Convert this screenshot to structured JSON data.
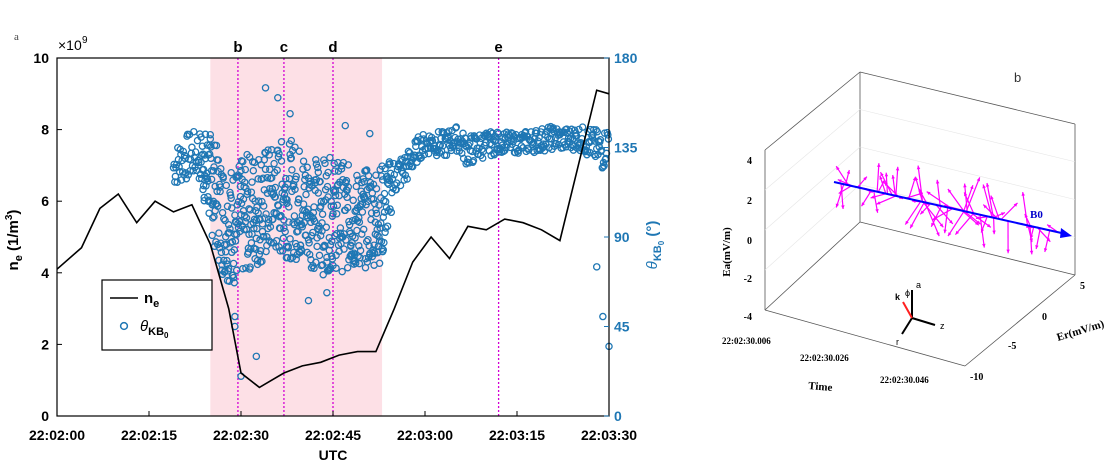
{
  "panel_a_label": "a",
  "panel_b_label": "b",
  "chart_data": [
    {
      "panel": "a",
      "type": "line",
      "xlabel": "UTC",
      "ylabel_left": "n_e (1/m^3)",
      "ylabel_right": "θ_KB0 (°)",
      "exponent_label": "×10",
      "exponent_power": "9",
      "xlim": [
        "22:02:00",
        "22:03:30"
      ],
      "ylim_left": [
        0,
        10
      ],
      "ylim_right": [
        0,
        180
      ],
      "x_ticks": [
        "22:02:00",
        "22:02:15",
        "22:02:30",
        "22:02:45",
        "22:03:00",
        "22:03:15",
        "22:03:30"
      ],
      "y_ticks_left": [
        "0",
        "2",
        "4",
        "6",
        "8",
        "10"
      ],
      "y_ticks_right": [
        "0",
        "45",
        "90",
        "135",
        "180"
      ],
      "colors": {
        "ne": "#000000",
        "theta": "#1f77b4",
        "shade": "#fde0e6",
        "marker_lines": "#d400d4"
      },
      "shaded_region": [
        "22:02:25",
        "22:02:53"
      ],
      "marker_lines": [
        {
          "label": "b",
          "x": "22:02:29.5"
        },
        {
          "label": "c",
          "x": "22:02:37"
        },
        {
          "label": "d",
          "x": "22:02:45"
        },
        {
          "label": "e",
          "x": "22:03:12"
        }
      ],
      "legend": {
        "placement": "bottom-left",
        "entries": [
          "n_e",
          "θ_KB0"
        ]
      },
      "series": [
        {
          "name": "n_e",
          "axis": "left",
          "x": [
            "22:02:00",
            "22:02:04",
            "22:02:07",
            "22:02:10",
            "22:02:13",
            "22:02:16",
            "22:02:19",
            "22:02:22",
            "22:02:25",
            "22:02:28",
            "22:02:30",
            "22:02:33",
            "22:02:37",
            "22:02:40",
            "22:02:43",
            "22:02:46",
            "22:02:49",
            "22:02:52",
            "22:02:55",
            "22:02:58",
            "22:03:01",
            "22:03:04",
            "22:03:07",
            "22:03:10",
            "22:03:13",
            "22:03:16",
            "22:03:19",
            "22:03:22",
            "22:03:25",
            "22:03:28",
            "22:03:30"
          ],
          "y": [
            4.1,
            4.7,
            5.8,
            6.2,
            5.4,
            6.0,
            5.7,
            5.9,
            4.8,
            3.0,
            1.2,
            0.8,
            1.2,
            1.4,
            1.5,
            1.7,
            1.8,
            1.8,
            3.0,
            4.3,
            5.0,
            4.4,
            5.3,
            5.2,
            5.5,
            5.4,
            5.2,
            4.9,
            7.0,
            9.1,
            9.0
          ]
        },
        {
          "name": "θ_KB0",
          "axis": "right",
          "envelope": {
            "x": [
              "22:02:19",
              "22:02:21",
              "22:02:23",
              "22:02:25",
              "22:02:27",
              "22:02:29",
              "22:02:31",
              "22:02:33",
              "22:02:35",
              "22:02:37",
              "22:02:39",
              "22:02:41",
              "22:02:43",
              "22:02:45",
              "22:02:47",
              "22:02:49",
              "22:02:51",
              "22:02:53",
              "22:02:55",
              "22:02:57",
              "22:02:59",
              "22:03:01",
              "22:03:03",
              "22:03:05",
              "22:03:07",
              "22:03:09",
              "22:03:11",
              "22:03:13",
              "22:03:15",
              "22:03:17",
              "22:03:19",
              "22:03:21",
              "22:03:23",
              "22:03:25",
              "22:03:27",
              "22:03:29",
              "22:03:30"
            ],
            "center": [
              125,
              130,
              132,
              118,
              100,
              95,
              102,
              105,
              108,
              110,
              108,
              104,
              100,
              102,
              100,
              98,
              100,
              102,
              120,
              125,
              135,
              138,
              136,
              140,
              133,
              136,
              137,
              138,
              137,
              138,
              139,
              140,
              139,
              140,
              137,
              133,
              140
            ],
            "spread": [
              10,
              12,
              12,
              25,
              30,
              30,
              30,
              30,
              28,
              30,
              30,
              28,
              30,
              28,
              28,
              25,
              25,
              25,
              10,
              8,
              6,
              6,
              7,
              6,
              8,
              7,
              6,
              5,
              5,
              6,
              6,
              6,
              6,
              6,
              8,
              10,
              8
            ]
          },
          "extra_points": [
            {
              "x": "22:02:30",
              "y": 20
            },
            {
              "x": "22:02:29",
              "y": 45
            },
            {
              "x": "22:02:29",
              "y": 50
            },
            {
              "x": "22:02:32.5",
              "y": 30
            },
            {
              "x": "22:02:34",
              "y": 165
            },
            {
              "x": "22:02:36",
              "y": 160
            },
            {
              "x": "22:02:38",
              "y": 152
            },
            {
              "x": "22:02:47",
              "y": 146
            },
            {
              "x": "22:02:51",
              "y": 142
            },
            {
              "x": "22:03:29",
              "y": 50
            },
            {
              "x": "22:03:30",
              "y": 35
            },
            {
              "x": "22:03:28",
              "y": 75
            },
            {
              "x": "22:02:44",
              "y": 62
            },
            {
              "x": "22:02:41",
              "y": 58
            }
          ]
        }
      ]
    },
    {
      "panel": "b",
      "type": "scatter",
      "zlabel": "Ea(mV/m)",
      "ylabel": "Er(mV/m)",
      "xlabel": "Time",
      "z_ticks": [
        "4",
        "2",
        "0",
        "-2",
        "-4"
      ],
      "y_ticks": [
        "5",
        "0",
        "-5",
        "-10"
      ],
      "x_ticks": [
        "22:02:30.006",
        "22:02:30.026",
        "22:02:30.046"
      ],
      "b_field_label": "B0",
      "axis_glyph_labels": [
        "a",
        "k",
        "ϕ",
        "z",
        "r"
      ],
      "colors": {
        "vectors": "#ff00ff",
        "b_field": "#0000ff",
        "k_vector": "#ff2020"
      },
      "groups": [
        {
          "center": 0.06,
          "count": 9,
          "reach": 22,
          "len": 30
        },
        {
          "center": 0.19,
          "count": 10,
          "reach": 26,
          "len": 32
        },
        {
          "center": 0.34,
          "count": 11,
          "reach": 30,
          "len": 38
        },
        {
          "center": 0.48,
          "count": 14,
          "reach": 36,
          "len": 44
        },
        {
          "center": 0.63,
          "count": 12,
          "reach": 32,
          "len": 40
        },
        {
          "center": 0.78,
          "count": 10,
          "reach": 28,
          "len": 34
        },
        {
          "center": 0.92,
          "count": 7,
          "reach": 22,
          "len": 28
        }
      ]
    }
  ]
}
